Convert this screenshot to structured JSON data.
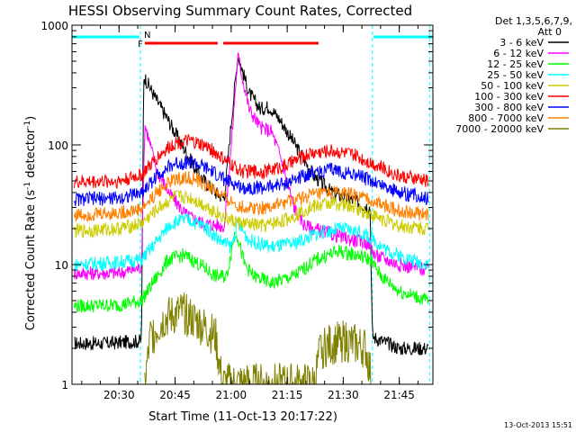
{
  "chart_data": {
    "type": "line",
    "title": "HESSI Observing Summary Count Rates, Corrected",
    "xlabel": "Start Time (11-Oct-13 20:17:22)",
    "ylabel_main": "Corrected Count Rate (s",
    "ylabel_sup1": "-1",
    "ylabel_mid": " detector",
    "ylabel_sup2": "-1",
    "ylabel_end": ")",
    "y_scale": "log",
    "ylim": [
      1,
      1000
    ],
    "xlim_minutes": [
      20.29,
      21.9
    ],
    "x_ticks": [
      {
        "t": 20.5,
        "label": "20:30"
      },
      {
        "t": 20.75,
        "label": "20:45"
      },
      {
        "t": 21.0,
        "label": "21:00"
      },
      {
        "t": 21.25,
        "label": "21:15"
      },
      {
        "t": 21.5,
        "label": "21:30"
      },
      {
        "t": 21.75,
        "label": "21:45"
      }
    ],
    "y_ticks": [
      {
        "v": 1,
        "label": "1"
      },
      {
        "v": 10,
        "label": "10"
      },
      {
        "v": 100,
        "label": "100"
      },
      {
        "v": 1000,
        "label": "1000"
      }
    ],
    "legend_header": [
      "Det 1,3,5,6,7,9,",
      "Att 0"
    ],
    "timestamp": "13-Oct-2013 15:51",
    "flags": [
      {
        "label": "F",
        "color": "#ff0000",
        "t_start": 20.615,
        "t_end": 20.94
      },
      {
        "label": "",
        "color": "#ff0000",
        "t_start": 20.965,
        "t_end": 21.39
      },
      {
        "label": "N",
        "color": "#00ffff",
        "t_start": 20.29,
        "t_end": 20.59
      },
      {
        "label": "",
        "color": "#00ffff",
        "t_start": 21.635,
        "t_end": 21.9
      }
    ],
    "night_lines": [
      20.595,
      21.63,
      21.885
    ],
    "series": [
      {
        "name": "3 - 6 keV",
        "color": "#000000",
        "points": [
          [
            20.3,
            2.2
          ],
          [
            20.45,
            2.2
          ],
          [
            20.6,
            2.3
          ],
          [
            20.61,
            380
          ],
          [
            20.66,
            250
          ],
          [
            20.72,
            160
          ],
          [
            20.78,
            100
          ],
          [
            20.86,
            55
          ],
          [
            20.93,
            40
          ],
          [
            20.97,
            36
          ],
          [
            21.0,
            150
          ],
          [
            21.03,
            560
          ],
          [
            21.08,
            270
          ],
          [
            21.13,
            200
          ],
          [
            21.17,
            210
          ],
          [
            21.22,
            160
          ],
          [
            21.3,
            90
          ],
          [
            21.37,
            55
          ],
          [
            21.45,
            40
          ],
          [
            21.55,
            34
          ],
          [
            21.62,
            30
          ],
          [
            21.63,
            2.5
          ],
          [
            21.75,
            2.0
          ],
          [
            21.88,
            2.0
          ]
        ]
      },
      {
        "name": "6 - 12 keV",
        "color": "#ff00ff",
        "points": [
          [
            20.3,
            8.5
          ],
          [
            20.5,
            8.5
          ],
          [
            20.6,
            9.5
          ],
          [
            20.615,
            150
          ],
          [
            20.67,
            60
          ],
          [
            20.73,
            38
          ],
          [
            20.8,
            26
          ],
          [
            20.88,
            22
          ],
          [
            20.97,
            21
          ],
          [
            21.0,
            95
          ],
          [
            21.03,
            560
          ],
          [
            21.08,
            200
          ],
          [
            21.13,
            140
          ],
          [
            21.18,
            130
          ],
          [
            21.22,
            80
          ],
          [
            21.28,
            30
          ],
          [
            21.33,
            21
          ],
          [
            21.45,
            18
          ],
          [
            21.55,
            16
          ],
          [
            21.62,
            15
          ],
          [
            21.64,
            12
          ],
          [
            21.75,
            10
          ],
          [
            21.88,
            9
          ]
        ]
      },
      {
        "name": "12 - 25 keV",
        "color": "#00ff00",
        "points": [
          [
            20.3,
            4.5
          ],
          [
            20.5,
            4.6
          ],
          [
            20.6,
            5
          ],
          [
            20.65,
            7
          ],
          [
            20.72,
            11
          ],
          [
            20.79,
            12
          ],
          [
            20.86,
            10
          ],
          [
            20.93,
            8
          ],
          [
            20.98,
            8
          ],
          [
            21.02,
            20
          ],
          [
            21.06,
            10
          ],
          [
            21.1,
            8
          ],
          [
            21.18,
            7
          ],
          [
            21.28,
            8
          ],
          [
            21.38,
            11
          ],
          [
            21.48,
            13
          ],
          [
            21.56,
            12
          ],
          [
            21.62,
            11
          ],
          [
            21.67,
            8
          ],
          [
            21.75,
            6
          ],
          [
            21.88,
            5
          ]
        ]
      },
      {
        "name": "25 - 50 keV",
        "color": "#00ffff",
        "points": [
          [
            20.3,
            10
          ],
          [
            20.5,
            10.5
          ],
          [
            20.6,
            11
          ],
          [
            20.66,
            15
          ],
          [
            20.73,
            22
          ],
          [
            20.8,
            24
          ],
          [
            20.88,
            21
          ],
          [
            20.95,
            16
          ],
          [
            21.0,
            14
          ],
          [
            21.03,
            22
          ],
          [
            21.08,
            16
          ],
          [
            21.18,
            14
          ],
          [
            21.28,
            15
          ],
          [
            21.38,
            18
          ],
          [
            21.48,
            20
          ],
          [
            21.56,
            19
          ],
          [
            21.62,
            17
          ],
          [
            21.7,
            13
          ],
          [
            21.8,
            11
          ],
          [
            21.88,
            10
          ]
        ]
      },
      {
        "name": "50 - 100 keV",
        "color": "#cccc00",
        "points": [
          [
            20.3,
            19
          ],
          [
            20.5,
            20
          ],
          [
            20.6,
            22
          ],
          [
            20.68,
            30
          ],
          [
            20.75,
            37
          ],
          [
            20.82,
            36
          ],
          [
            20.9,
            30
          ],
          [
            20.98,
            24
          ],
          [
            21.05,
            22
          ],
          [
            21.15,
            21
          ],
          [
            21.25,
            24
          ],
          [
            21.35,
            30
          ],
          [
            21.45,
            33
          ],
          [
            21.55,
            30
          ],
          [
            21.65,
            25
          ],
          [
            21.75,
            21
          ],
          [
            21.88,
            20
          ]
        ]
      },
      {
        "name": "100 - 300 keV",
        "color": "#ff0000",
        "points": [
          [
            20.3,
            49
          ],
          [
            20.5,
            50
          ],
          [
            20.6,
            56
          ],
          [
            20.68,
            82
          ],
          [
            20.75,
            105
          ],
          [
            20.82,
            107
          ],
          [
            20.9,
            95
          ],
          [
            20.98,
            72
          ],
          [
            21.05,
            60
          ],
          [
            21.15,
            60
          ],
          [
            21.25,
            68
          ],
          [
            21.35,
            85
          ],
          [
            21.45,
            90
          ],
          [
            21.55,
            82
          ],
          [
            21.65,
            68
          ],
          [
            21.75,
            55
          ],
          [
            21.88,
            50
          ]
        ]
      },
      {
        "name": "300 - 800 keV",
        "color": "#0000ff",
        "points": [
          [
            20.3,
            35
          ],
          [
            20.5,
            36
          ],
          [
            20.6,
            40
          ],
          [
            20.68,
            58
          ],
          [
            20.75,
            70
          ],
          [
            20.82,
            72
          ],
          [
            20.9,
            62
          ],
          [
            20.98,
            50
          ],
          [
            21.05,
            44
          ],
          [
            21.15,
            44
          ],
          [
            21.25,
            48
          ],
          [
            21.35,
            58
          ],
          [
            21.45,
            62
          ],
          [
            21.55,
            57
          ],
          [
            21.65,
            48
          ],
          [
            21.75,
            40
          ],
          [
            21.88,
            36
          ]
        ]
      },
      {
        "name": "800 - 7000 keV",
        "color": "#ff8000",
        "points": [
          [
            20.3,
            26
          ],
          [
            20.5,
            27
          ],
          [
            20.6,
            29
          ],
          [
            20.68,
            42
          ],
          [
            20.75,
            52
          ],
          [
            20.82,
            53
          ],
          [
            20.9,
            45
          ],
          [
            20.98,
            35
          ],
          [
            21.05,
            30
          ],
          [
            21.15,
            30
          ],
          [
            21.25,
            33
          ],
          [
            21.35,
            38
          ],
          [
            21.45,
            40
          ],
          [
            21.55,
            38
          ],
          [
            21.65,
            33
          ],
          [
            21.75,
            28
          ],
          [
            21.88,
            26
          ]
        ]
      },
      {
        "name": "7000 - 20000 keV",
        "color": "#808000",
        "points": [
          [
            20.615,
            1.0
          ],
          [
            20.64,
            2.5
          ],
          [
            20.7,
            3.5
          ],
          [
            20.78,
            4
          ],
          [
            20.86,
            3.2
          ],
          [
            20.93,
            2.5
          ],
          [
            20.96,
            1.0
          ],
          [
            21.37,
            1.0
          ],
          [
            21.4,
            2.0
          ],
          [
            21.5,
            2.3
          ],
          [
            21.6,
            2.0
          ],
          [
            21.63,
            1.0
          ]
        ]
      }
    ]
  }
}
